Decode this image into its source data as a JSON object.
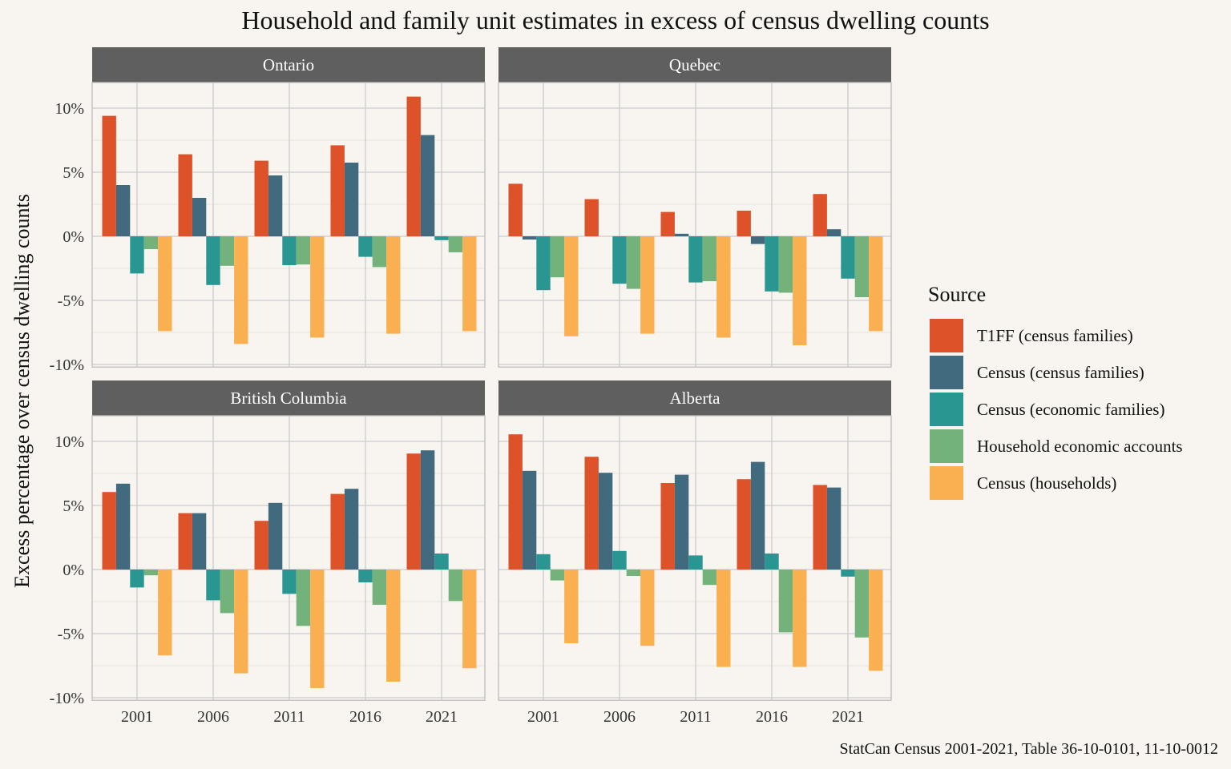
{
  "chart_data": {
    "type": "bar",
    "title": "Household and family unit estimates in excess of census dwelling counts",
    "ylabel": "Excess percentage over census dwelling counts",
    "xlabel": "",
    "caption": "StatCan Census 2001-2021, Table 36-10-0101, 11-10-0012",
    "categories": [
      "2001",
      "2006",
      "2011",
      "2016",
      "2021"
    ],
    "ylim": [
      -10,
      12
    ],
    "yticks": [
      10,
      5,
      0,
      -5,
      -10
    ],
    "ytick_labels": [
      "10%",
      "5%",
      "0%",
      "-5%",
      "-10%"
    ],
    "grid": true,
    "legend": {
      "title": "Source",
      "placement": "right",
      "entries": [
        "T1FF (census families)",
        "Census (census families)",
        "Census (economic families)",
        "Household economic accounts",
        "Census (households)"
      ]
    },
    "colors": [
      "#DE5229",
      "#426A7F",
      "#2A9691",
      "#73B27A",
      "#FAB050"
    ],
    "panels": [
      {
        "name": "Ontario",
        "series": [
          {
            "name": "T1FF (census families)",
            "values": [
              9.4,
              6.4,
              5.9,
              7.1,
              10.9
            ]
          },
          {
            "name": "Census (census families)",
            "values": [
              4.0,
              3.0,
              4.75,
              5.75,
              7.9
            ]
          },
          {
            "name": "Census (economic families)",
            "values": [
              -2.9,
              -3.8,
              -2.25,
              -1.6,
              -0.3
            ]
          },
          {
            "name": "Household economic accounts",
            "values": [
              -1.0,
              -2.3,
              -2.2,
              -2.4,
              -1.25
            ]
          },
          {
            "name": "Census (households)",
            "values": [
              -7.4,
              -8.4,
              -7.9,
              -7.6,
              -7.4
            ]
          }
        ]
      },
      {
        "name": "Quebec",
        "series": [
          {
            "name": "T1FF (census families)",
            "values": [
              4.1,
              2.9,
              1.9,
              2.0,
              3.3
            ]
          },
          {
            "name": "Census (census families)",
            "values": [
              -0.25,
              0.0,
              0.2,
              -0.6,
              0.55
            ]
          },
          {
            "name": "Census (economic families)",
            "values": [
              -4.2,
              -3.7,
              -3.6,
              -4.3,
              -3.3
            ]
          },
          {
            "name": "Household economic accounts",
            "values": [
              -3.2,
              -4.1,
              -3.5,
              -4.4,
              -4.75
            ]
          },
          {
            "name": "Census (households)",
            "values": [
              -7.8,
              -7.6,
              -7.9,
              -8.5,
              -7.4
            ]
          }
        ]
      },
      {
        "name": "British Columbia",
        "series": [
          {
            "name": "T1FF (census families)",
            "values": [
              6.05,
              4.4,
              3.8,
              5.9,
              9.05
            ]
          },
          {
            "name": "Census (census families)",
            "values": [
              6.7,
              4.4,
              5.2,
              6.3,
              9.3
            ]
          },
          {
            "name": "Census (economic families)",
            "values": [
              -1.4,
              -2.4,
              -1.9,
              -1.0,
              1.25
            ]
          },
          {
            "name": "Household economic accounts",
            "values": [
              -0.45,
              -3.4,
              -4.4,
              -2.75,
              -2.45
            ]
          },
          {
            "name": "Census (households)",
            "values": [
              -6.7,
              -8.1,
              -9.25,
              -8.75,
              -7.7
            ]
          }
        ]
      },
      {
        "name": "Alberta",
        "series": [
          {
            "name": "T1FF (census families)",
            "values": [
              10.55,
              8.8,
              6.75,
              7.05,
              6.6
            ]
          },
          {
            "name": "Census (census families)",
            "values": [
              7.7,
              7.55,
              7.4,
              8.4,
              6.4
            ]
          },
          {
            "name": "Census (economic families)",
            "values": [
              1.2,
              1.45,
              1.1,
              1.25,
              -0.55
            ]
          },
          {
            "name": "Household economic accounts",
            "values": [
              -0.85,
              -0.5,
              -1.2,
              -4.9,
              -5.3
            ]
          },
          {
            "name": "Census (households)",
            "values": [
              -5.75,
              -5.95,
              -7.6,
              -7.6,
              -7.9
            ]
          }
        ]
      }
    ]
  }
}
